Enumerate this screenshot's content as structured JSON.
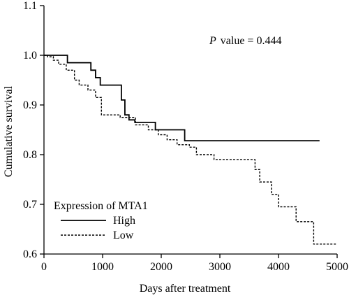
{
  "chart_data": {
    "type": "line",
    "title": "",
    "annotation": "value = 0.444",
    "annotation_prefix": "P",
    "xlabel": "Days after treatment",
    "ylabel": "Cumulative survival",
    "xlim": [
      0,
      5000
    ],
    "ylim": [
      0.6,
      1.1
    ],
    "xticks": [
      0,
      1000,
      2000,
      3000,
      4000,
      5000
    ],
    "yticks": [
      0.6,
      0.7,
      0.8,
      0.9,
      1.0,
      1.1
    ],
    "xtick_labels": [
      "0",
      "1000",
      "2000",
      "3000",
      "4000",
      "5000"
    ],
    "ytick_labels": [
      "0.6",
      "0.7",
      "0.8",
      "0.9",
      "1.0",
      "1.1"
    ],
    "grid": false,
    "legend_title": "Expression of MTA1",
    "legend_position": "bottom-left",
    "series": [
      {
        "name": "High",
        "style": "solid",
        "color": "#000000",
        "step": true,
        "x": [
          0,
          400,
          800,
          880,
          960,
          1050,
          1320,
          1380,
          1450,
          1550,
          1900,
          2400,
          4700
        ],
        "y": [
          1.0,
          0.985,
          0.97,
          0.955,
          0.94,
          0.94,
          0.91,
          0.88,
          0.87,
          0.865,
          0.85,
          0.828,
          0.828
        ]
      },
      {
        "name": "Low",
        "style": "dotted",
        "color": "#000000",
        "step": true,
        "x": [
          0,
          60,
          160,
          250,
          380,
          520,
          600,
          750,
          880,
          980,
          1300,
          1560,
          1780,
          1950,
          2100,
          2270,
          2480,
          2600,
          2900,
          3600,
          3680,
          3880,
          4000,
          4300,
          4600,
          4980
        ],
        "y": [
          1.0,
          0.997,
          0.99,
          0.982,
          0.97,
          0.95,
          0.94,
          0.93,
          0.915,
          0.88,
          0.875,
          0.86,
          0.85,
          0.84,
          0.83,
          0.82,
          0.815,
          0.8,
          0.79,
          0.77,
          0.745,
          0.72,
          0.695,
          0.665,
          0.62,
          0.62
        ]
      }
    ]
  }
}
